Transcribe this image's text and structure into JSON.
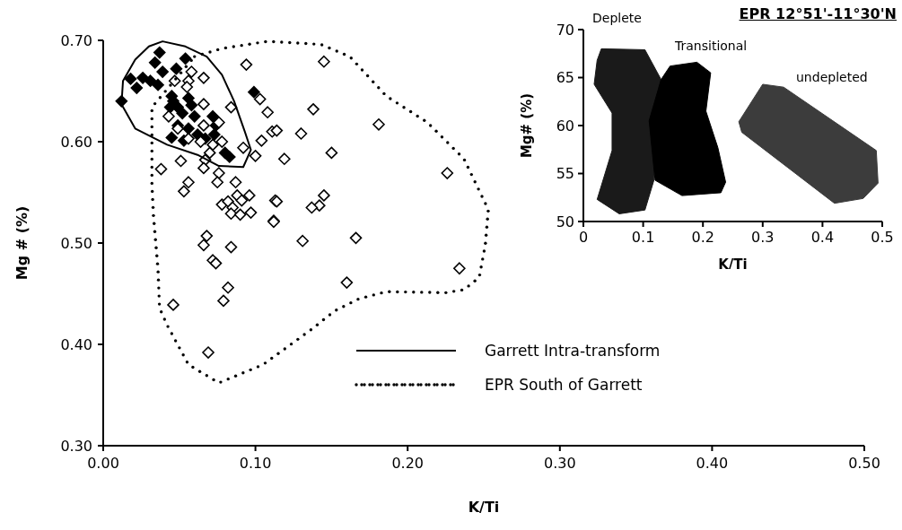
{
  "chart_data": [
    {
      "type": "scatter",
      "xlabel": "K/Ti",
      "ylabel": "Mg # (%)",
      "xlim": [
        0,
        0.5
      ],
      "ylim": [
        0.3,
        0.7
      ],
      "xticks": [
        {
          "value": 0,
          "label": "0.00"
        },
        {
          "value": 0.1,
          "label": "0.10"
        },
        {
          "value": 0.2,
          "label": "0.20"
        },
        {
          "value": 0.3,
          "label": "0.30"
        },
        {
          "value": 0.4,
          "label": "0.40"
        },
        {
          "value": 0.5,
          "label": "0.50"
        }
      ],
      "yticks": [
        {
          "value": 0.3,
          "label": "0.30"
        },
        {
          "value": 0.4,
          "label": "0.40"
        },
        {
          "value": 0.5,
          "label": "0.50"
        },
        {
          "value": 0.6,
          "label": "0.60"
        },
        {
          "value": 0.7,
          "label": "0.70"
        }
      ],
      "marker": "diamond",
      "annotations": [
        "Garrett Intra-transform",
        "EPR South of Garrett"
      ],
      "series": [
        {
          "color": "#000000",
          "x": [
            0.037,
            0.034,
            0.054,
            0.039,
            0.048,
            0.018,
            0.026,
            0.031,
            0.022,
            0.036,
            0.012,
            0.045,
            0.046,
            0.049,
            0.044,
            0.056,
            0.058,
            0.052,
            0.06,
            0.049,
            0.056,
            0.045,
            0.053,
            0.062,
            0.072,
            0.074,
            0.073,
            0.08,
            0.083,
            0.099,
            0.067
          ],
          "values": [
            0.688,
            0.678,
            0.682,
            0.669,
            0.672,
            0.662,
            0.663,
            0.66,
            0.653,
            0.656,
            0.64,
            0.645,
            0.64,
            0.634,
            0.634,
            0.643,
            0.636,
            0.628,
            0.625,
            0.616,
            0.613,
            0.604,
            0.601,
            0.607,
            0.625,
            0.616,
            0.607,
            0.589,
            0.585,
            0.649,
            0.603
          ]
        },
        {
          "color": "#ffffff",
          "x": [
            0.058,
            0.066,
            0.056,
            0.047,
            0.055,
            0.084,
            0.094,
            0.103,
            0.108,
            0.111,
            0.104,
            0.1,
            0.066,
            0.043,
            0.049,
            0.066,
            0.076,
            0.056,
            0.064,
            0.072,
            0.078,
            0.092,
            0.07,
            0.051,
            0.038,
            0.067,
            0.076,
            0.087,
            0.075,
            0.056,
            0.053,
            0.066,
            0.078,
            0.082,
            0.088,
            0.096,
            0.091,
            0.085,
            0.084,
            0.09,
            0.097,
            0.113,
            0.112,
            0.068,
            0.066,
            0.084,
            0.072,
            0.074,
            0.082,
            0.079,
            0.046,
            0.069,
            0.145,
            0.114,
            0.138,
            0.13,
            0.181,
            0.15,
            0.119,
            0.226,
            0.114,
            0.145,
            0.142,
            0.137,
            0.112,
            0.131,
            0.166,
            0.16,
            0.234
          ],
          "values": [
            0.669,
            0.663,
            0.66,
            0.66,
            0.654,
            0.634,
            0.676,
            0.642,
            0.629,
            0.61,
            0.601,
            0.586,
            0.637,
            0.625,
            0.613,
            0.616,
            0.619,
            0.603,
            0.6,
            0.597,
            0.6,
            0.594,
            0.589,
            0.581,
            0.573,
            0.582,
            0.569,
            0.56,
            0.56,
            0.56,
            0.551,
            0.574,
            0.538,
            0.541,
            0.547,
            0.547,
            0.542,
            0.535,
            0.529,
            0.528,
            0.53,
            0.542,
            0.522,
            0.507,
            0.498,
            0.496,
            0.483,
            0.48,
            0.456,
            0.443,
            0.439,
            0.392,
            0.679,
            0.611,
            0.632,
            0.608,
            0.617,
            0.589,
            0.583,
            0.569,
            0.541,
            0.547,
            0.537,
            0.535,
            0.521,
            0.502,
            0.505,
            0.461,
            0.475
          ]
        }
      ]
    },
    {
      "type": "area",
      "title": "EPR 12°51'-11°30'N",
      "xlabel": "K/Ti",
      "ylabel": "Mg# (%)",
      "xlim": [
        0,
        0.5
      ],
      "ylim": [
        50,
        70
      ],
      "xticks": [
        0,
        0.1,
        0.2,
        0.3,
        0.4,
        0.5
      ],
      "yticks": [
        50,
        55,
        60,
        65,
        70
      ],
      "series": [
        {
          "name": "Deplete",
          "color": "#1a1a1a",
          "x": [
            0.03,
            0.103,
            0.13,
            0.118,
            0.103,
            0.06,
            0.023,
            0.048,
            0.048,
            0.018,
            0.023
          ],
          "values": [
            68,
            67.9,
            64.8,
            54.3,
            51.2,
            50.8,
            52.3,
            57.4,
            61.3,
            64.3,
            66.8
          ]
        },
        {
          "name": "Transitional",
          "color": "#000000",
          "x": [
            0.13,
            0.145,
            0.19,
            0.213,
            0.205,
            0.225,
            0.238,
            0.23,
            0.165,
            0.12,
            0.11
          ],
          "values": [
            64.8,
            66.2,
            66.6,
            65.5,
            61.5,
            57.7,
            54.1,
            53,
            52.7,
            54.3,
            60.5
          ]
        },
        {
          "name": "undepleted",
          "color": "#3c3c3c",
          "x": [
            0.3,
            0.335,
            0.49,
            0.493,
            0.468,
            0.42,
            0.265,
            0.26
          ],
          "values": [
            64.3,
            64,
            57.4,
            54,
            52.4,
            51.9,
            59.3,
            60.4
          ]
        }
      ]
    }
  ]
}
